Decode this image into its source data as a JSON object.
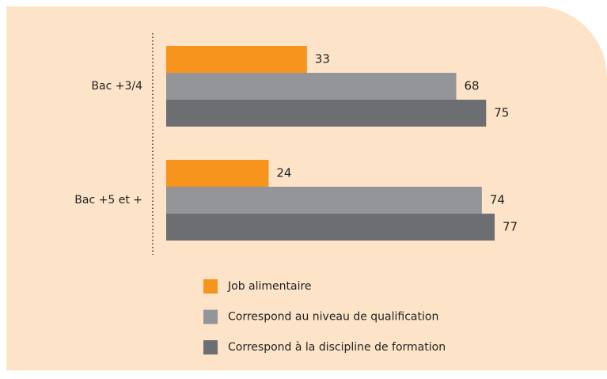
{
  "chart_data": {
    "type": "barh",
    "categories": [
      "Bac +3/4",
      "Bac +5 et +"
    ],
    "series": [
      {
        "name": "Job alimentaire",
        "color": "#f7941d",
        "values": [
          33,
          24
        ]
      },
      {
        "name": "Correspond au niveau de qualification",
        "color": "#939598",
        "values": [
          68,
          74
        ]
      },
      {
        "name": "Correspond à la discipline de formation",
        "color": "#6d6e71",
        "values": [
          75,
          77
        ]
      }
    ],
    "xlim": [
      0,
      100
    ]
  }
}
